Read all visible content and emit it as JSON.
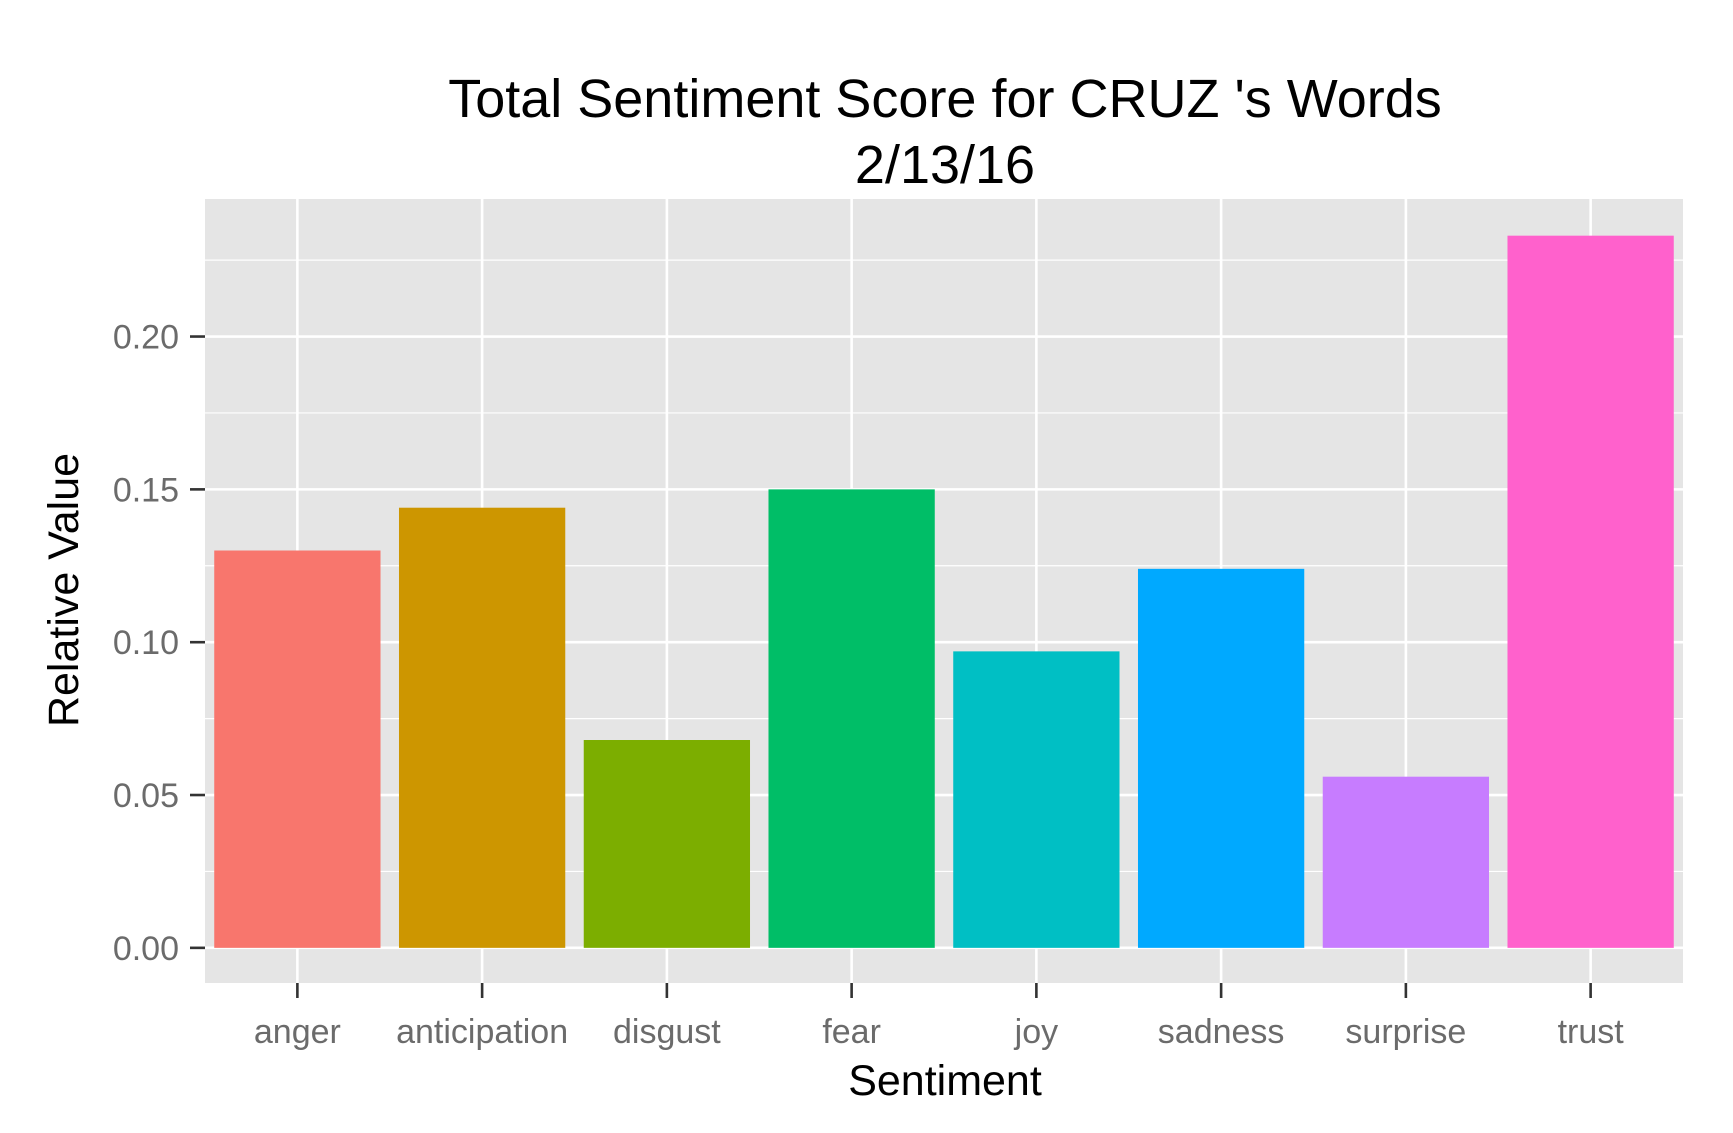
{
  "chart_data": {
    "type": "bar",
    "title": "Total Sentiment Score for CRUZ 's Words",
    "subtitle": "2/13/16",
    "xlabel": "Sentiment",
    "ylabel": "Relative Value",
    "categories": [
      "anger",
      "anticipation",
      "disgust",
      "fear",
      "joy",
      "sadness",
      "surprise",
      "trust"
    ],
    "values": [
      0.13,
      0.144,
      0.068,
      0.15,
      0.097,
      0.124,
      0.056,
      0.233
    ],
    "colors": [
      "#F8766D",
      "#CD9600",
      "#7CAE00",
      "#00BE67",
      "#00BFC4",
      "#00A9FF",
      "#C77CFF",
      "#FF61CC"
    ],
    "yticks": [
      0.0,
      0.05,
      0.1,
      0.15,
      0.2
    ],
    "ytick_labels": [
      "0.00",
      "0.05",
      "0.10",
      "0.15",
      "0.20"
    ],
    "ylim": [
      -0.0115,
      0.245
    ],
    "grid": true,
    "legend": "none",
    "panel_color": "#E5E5E5",
    "grid_color": "#FFFFFF"
  }
}
